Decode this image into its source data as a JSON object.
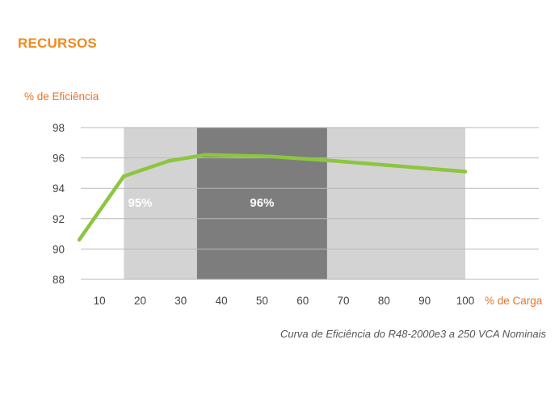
{
  "header": {
    "title": "RECURSOS"
  },
  "chart_data": {
    "type": "line",
    "ylabel": "% de Eficiência",
    "xlabel": "% de Carga",
    "caption": "Curva de Eficiência do R48-2000e3 a 250 VCA Nominais",
    "xlim": [
      5,
      105
    ],
    "ylim": [
      88,
      98
    ],
    "x_ticks": [
      10,
      20,
      30,
      40,
      50,
      60,
      70,
      80,
      90,
      100
    ],
    "y_ticks": [
      88,
      90,
      92,
      94,
      96,
      98
    ],
    "grid": "horizontal",
    "series": [
      {
        "color": "#8cc63f",
        "x": [
          5,
          16,
          27,
          36,
          52,
          68,
          100
        ],
        "y": [
          90.6,
          94.8,
          95.8,
          96.2,
          96.1,
          95.8,
          95.1
        ]
      }
    ],
    "bands": [
      {
        "x_range": [
          16,
          66
        ],
        "color": "#d3d3d3",
        "label": "95%",
        "label_x": 20
      },
      {
        "x_range": [
          34,
          66
        ],
        "color": "#7d7d7d",
        "label": "96%",
        "label_x": 50
      },
      {
        "x_range": [
          66,
          100
        ],
        "color": "#d3d3d3",
        "label": "",
        "label_x": 83
      }
    ]
  }
}
